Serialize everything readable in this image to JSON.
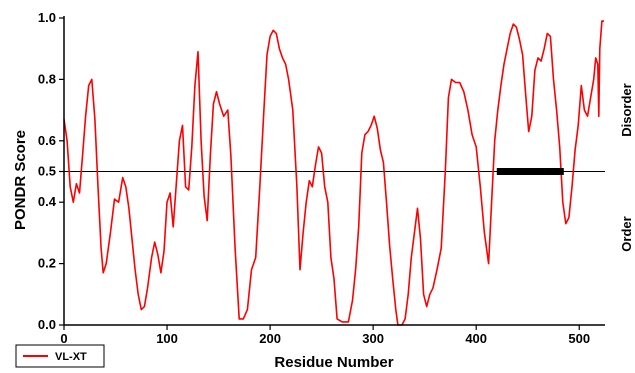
{
  "chart_data": {
    "type": "line",
    "title": "",
    "xlabel": "Residue Number",
    "ylabel": "PONDR Score",
    "xlim": [
      0,
      525
    ],
    "ylim": [
      0,
      1.0
    ],
    "x_ticks": [
      0,
      100,
      200,
      300,
      400,
      500
    ],
    "x_tick_labels": [
      "0",
      "100",
      "200",
      "300",
      "400",
      "500"
    ],
    "y_ticks": [
      0.0,
      0.2,
      0.4,
      0.5,
      0.6,
      0.8,
      1.0
    ],
    "y_tick_labels": [
      "0.0",
      "0.2",
      "0.4",
      "0.5",
      "0.6",
      "0.8",
      "1.0"
    ],
    "threshold": 0.5,
    "region_labels": {
      "above": "Disorder",
      "below": "Order"
    },
    "legend": {
      "position": "bottom-left",
      "entries": [
        "VL-XT"
      ]
    },
    "series": [
      {
        "name": "VL-XT",
        "color": "#ff0000",
        "points": [
          [
            0,
            0.67
          ],
          [
            3,
            0.6
          ],
          [
            6,
            0.45
          ],
          [
            9,
            0.4
          ],
          [
            12,
            0.46
          ],
          [
            15,
            0.43
          ],
          [
            18,
            0.55
          ],
          [
            21,
            0.68
          ],
          [
            24,
            0.78
          ],
          [
            27,
            0.8
          ],
          [
            30,
            0.67
          ],
          [
            33,
            0.45
          ],
          [
            36,
            0.25
          ],
          [
            38,
            0.17
          ],
          [
            41,
            0.2
          ],
          [
            45,
            0.3
          ],
          [
            49,
            0.41
          ],
          [
            53,
            0.4
          ],
          [
            57,
            0.48
          ],
          [
            60,
            0.45
          ],
          [
            63,
            0.38
          ],
          [
            66,
            0.28
          ],
          [
            69,
            0.18
          ],
          [
            72,
            0.1
          ],
          [
            75,
            0.05
          ],
          [
            78,
            0.06
          ],
          [
            81,
            0.12
          ],
          [
            85,
            0.22
          ],
          [
            88,
            0.27
          ],
          [
            91,
            0.23
          ],
          [
            94,
            0.17
          ],
          [
            97,
            0.24
          ],
          [
            100,
            0.4
          ],
          [
            103,
            0.43
          ],
          [
            106,
            0.32
          ],
          [
            109,
            0.46
          ],
          [
            112,
            0.6
          ],
          [
            115,
            0.65
          ],
          [
            118,
            0.45
          ],
          [
            121,
            0.44
          ],
          [
            124,
            0.58
          ],
          [
            127,
            0.78
          ],
          [
            130,
            0.89
          ],
          [
            133,
            0.6
          ],
          [
            136,
            0.42
          ],
          [
            139,
            0.34
          ],
          [
            142,
            0.55
          ],
          [
            145,
            0.72
          ],
          [
            148,
            0.76
          ],
          [
            151,
            0.72
          ],
          [
            155,
            0.68
          ],
          [
            159,
            0.7
          ],
          [
            162,
            0.55
          ],
          [
            166,
            0.25
          ],
          [
            170,
            0.02
          ],
          [
            174,
            0.02
          ],
          [
            178,
            0.05
          ],
          [
            182,
            0.18
          ],
          [
            186,
            0.22
          ],
          [
            190,
            0.45
          ],
          [
            194,
            0.7
          ],
          [
            197,
            0.88
          ],
          [
            200,
            0.94
          ],
          [
            203,
            0.96
          ],
          [
            206,
            0.95
          ],
          [
            209,
            0.9
          ],
          [
            212,
            0.87
          ],
          [
            215,
            0.85
          ],
          [
            218,
            0.8
          ],
          [
            222,
            0.7
          ],
          [
            226,
            0.45
          ],
          [
            229,
            0.18
          ],
          [
            232,
            0.3
          ],
          [
            235,
            0.4
          ],
          [
            238,
            0.47
          ],
          [
            241,
            0.45
          ],
          [
            244,
            0.52
          ],
          [
            247,
            0.58
          ],
          [
            250,
            0.56
          ],
          [
            253,
            0.45
          ],
          [
            256,
            0.4
          ],
          [
            259,
            0.22
          ],
          [
            262,
            0.15
          ],
          [
            265,
            0.02
          ],
          [
            270,
            0.01
          ],
          [
            276,
            0.01
          ],
          [
            280,
            0.08
          ],
          [
            283,
            0.18
          ],
          [
            286,
            0.32
          ],
          [
            289,
            0.56
          ],
          [
            292,
            0.62
          ],
          [
            295,
            0.63
          ],
          [
            298,
            0.65
          ],
          [
            301,
            0.68
          ],
          [
            304,
            0.64
          ],
          [
            307,
            0.57
          ],
          [
            310,
            0.53
          ],
          [
            313,
            0.4
          ],
          [
            316,
            0.26
          ],
          [
            319,
            0.15
          ],
          [
            322,
            0.05
          ],
          [
            324,
            0.0
          ],
          [
            328,
            0.0
          ],
          [
            331,
            0.02
          ],
          [
            334,
            0.1
          ],
          [
            337,
            0.22
          ],
          [
            340,
            0.3
          ],
          [
            343,
            0.38
          ],
          [
            346,
            0.28
          ],
          [
            349,
            0.1
          ],
          [
            352,
            0.06
          ],
          [
            355,
            0.1
          ],
          [
            358,
            0.12
          ],
          [
            362,
            0.18
          ],
          [
            366,
            0.25
          ],
          [
            370,
            0.5
          ],
          [
            373,
            0.74
          ],
          [
            376,
            0.8
          ],
          [
            380,
            0.79
          ],
          [
            384,
            0.79
          ],
          [
            388,
            0.76
          ],
          [
            392,
            0.7
          ],
          [
            396,
            0.62
          ],
          [
            400,
            0.58
          ],
          [
            404,
            0.45
          ],
          [
            408,
            0.3
          ],
          [
            412,
            0.2
          ],
          [
            415,
            0.4
          ],
          [
            418,
            0.6
          ],
          [
            421,
            0.7
          ],
          [
            424,
            0.78
          ],
          [
            427,
            0.85
          ],
          [
            430,
            0.9
          ],
          [
            433,
            0.95
          ],
          [
            436,
            0.98
          ],
          [
            439,
            0.97
          ],
          [
            442,
            0.93
          ],
          [
            445,
            0.88
          ],
          [
            448,
            0.75
          ],
          [
            451,
            0.63
          ],
          [
            454,
            0.68
          ],
          [
            457,
            0.83
          ],
          [
            460,
            0.87
          ],
          [
            463,
            0.86
          ],
          [
            466,
            0.9
          ],
          [
            469,
            0.95
          ],
          [
            472,
            0.94
          ],
          [
            475,
            0.8
          ],
          [
            478,
            0.7
          ],
          [
            481,
            0.58
          ],
          [
            484,
            0.4
          ],
          [
            487,
            0.33
          ],
          [
            490,
            0.35
          ],
          [
            493,
            0.45
          ],
          [
            496,
            0.57
          ],
          [
            499,
            0.65
          ],
          [
            502,
            0.78
          ],
          [
            505,
            0.7
          ],
          [
            508,
            0.68
          ],
          [
            511,
            0.74
          ],
          [
            514,
            0.8
          ],
          [
            516,
            0.87
          ],
          [
            518,
            0.85
          ],
          [
            519,
            0.68
          ],
          [
            520,
            0.9
          ],
          [
            522,
            0.99
          ],
          [
            524,
            0.99
          ]
        ]
      }
    ],
    "highlight_segment": {
      "x_start": 420,
      "x_end": 485,
      "y": 0.5,
      "color": "#000000"
    }
  }
}
